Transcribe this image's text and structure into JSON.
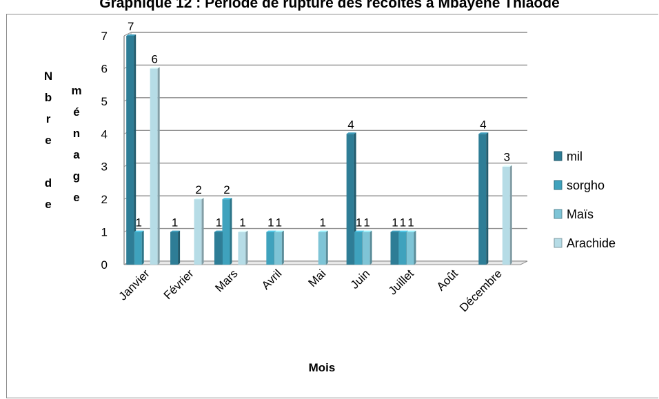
{
  "chart_data": {
    "type": "bar",
    "title": "Graphique 12 : Période de rupture des récoltes à Mbayène Thiaode",
    "xlabel": "Mois",
    "ylabel_col1": [
      "N",
      "b",
      "r",
      "e",
      "",
      "d",
      "e"
    ],
    "ylabel_col2": [
      "m",
      "é",
      "n",
      "a",
      "g",
      "e"
    ],
    "categories": [
      "Janvier",
      "Février",
      "Mars",
      "Avril",
      "Mai",
      "Juin",
      "Juillet",
      "Août",
      "Décembre"
    ],
    "ylim": [
      0,
      7
    ],
    "yticks": [
      "0",
      "1",
      "2",
      "3",
      "4",
      "5",
      "6",
      "7"
    ],
    "grid": true,
    "legend_position": "right",
    "series": [
      {
        "name": "mil",
        "color": "#2e7d96",
        "values": [
          7,
          1,
          1,
          null,
          null,
          4,
          1,
          null,
          4
        ]
      },
      {
        "name": "sorgho",
        "color": "#3fa2bd",
        "values": [
          1,
          null,
          2,
          1,
          null,
          1,
          1,
          null,
          null
        ]
      },
      {
        "name": "Maïs",
        "color": "#7ec4d6",
        "values": [
          null,
          null,
          null,
          1,
          1,
          1,
          1,
          null,
          null
        ]
      },
      {
        "name": "Arachide",
        "color": "#b6dce6",
        "values": [
          6,
          2,
          1,
          null,
          null,
          null,
          null,
          null,
          3
        ]
      }
    ]
  }
}
